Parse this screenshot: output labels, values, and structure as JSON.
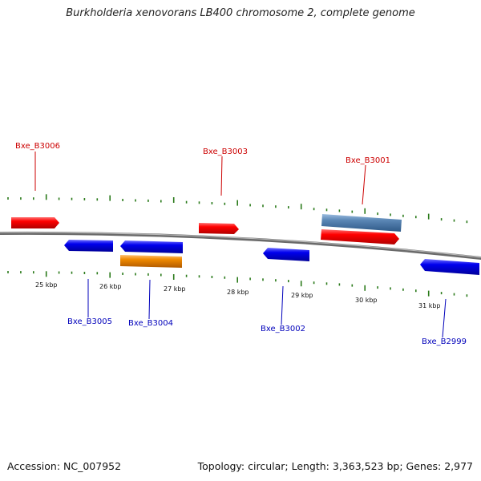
{
  "title": "Burkholderia xenovorans LB400 chromosome 2, complete genome",
  "accession": "Accession: NC_007952",
  "summary": "Topology: circular; Length: 3,363,523 bp; Genes: 2,977",
  "colors": {
    "backbone": "#808080",
    "tick": "#2a7a1a",
    "forward_gene": "#e00000",
    "reverse_gene": "#0000dd",
    "other_feature_blue": "#5a86b5",
    "other_feature_orange": "#f08a00",
    "forward_label": "#cc0000",
    "reverse_label": "#0000bb"
  },
  "scale": {
    "labels": [
      "25 kbp",
      "26 kbp",
      "27 kbp",
      "28 kbp",
      "29 kbp",
      "30 kbp",
      "31 kbp"
    ]
  },
  "genes": [
    {
      "name": "Bxe_B3006",
      "strand": "+",
      "labeled": true
    },
    {
      "name": "Bxe_B3005",
      "strand": "-",
      "labeled": true
    },
    {
      "name": "Bxe_B3004",
      "strand": "-",
      "labeled": true
    },
    {
      "name": "Bxe_B3003",
      "strand": "+",
      "labeled": true
    },
    {
      "name": "Bxe_B3002",
      "strand": "-",
      "labeled": true
    },
    {
      "name": "Bxe_B3001",
      "strand": "+",
      "labeled": true
    },
    {
      "name": "Bxe_B2999",
      "strand": "-",
      "labeled": true
    }
  ]
}
